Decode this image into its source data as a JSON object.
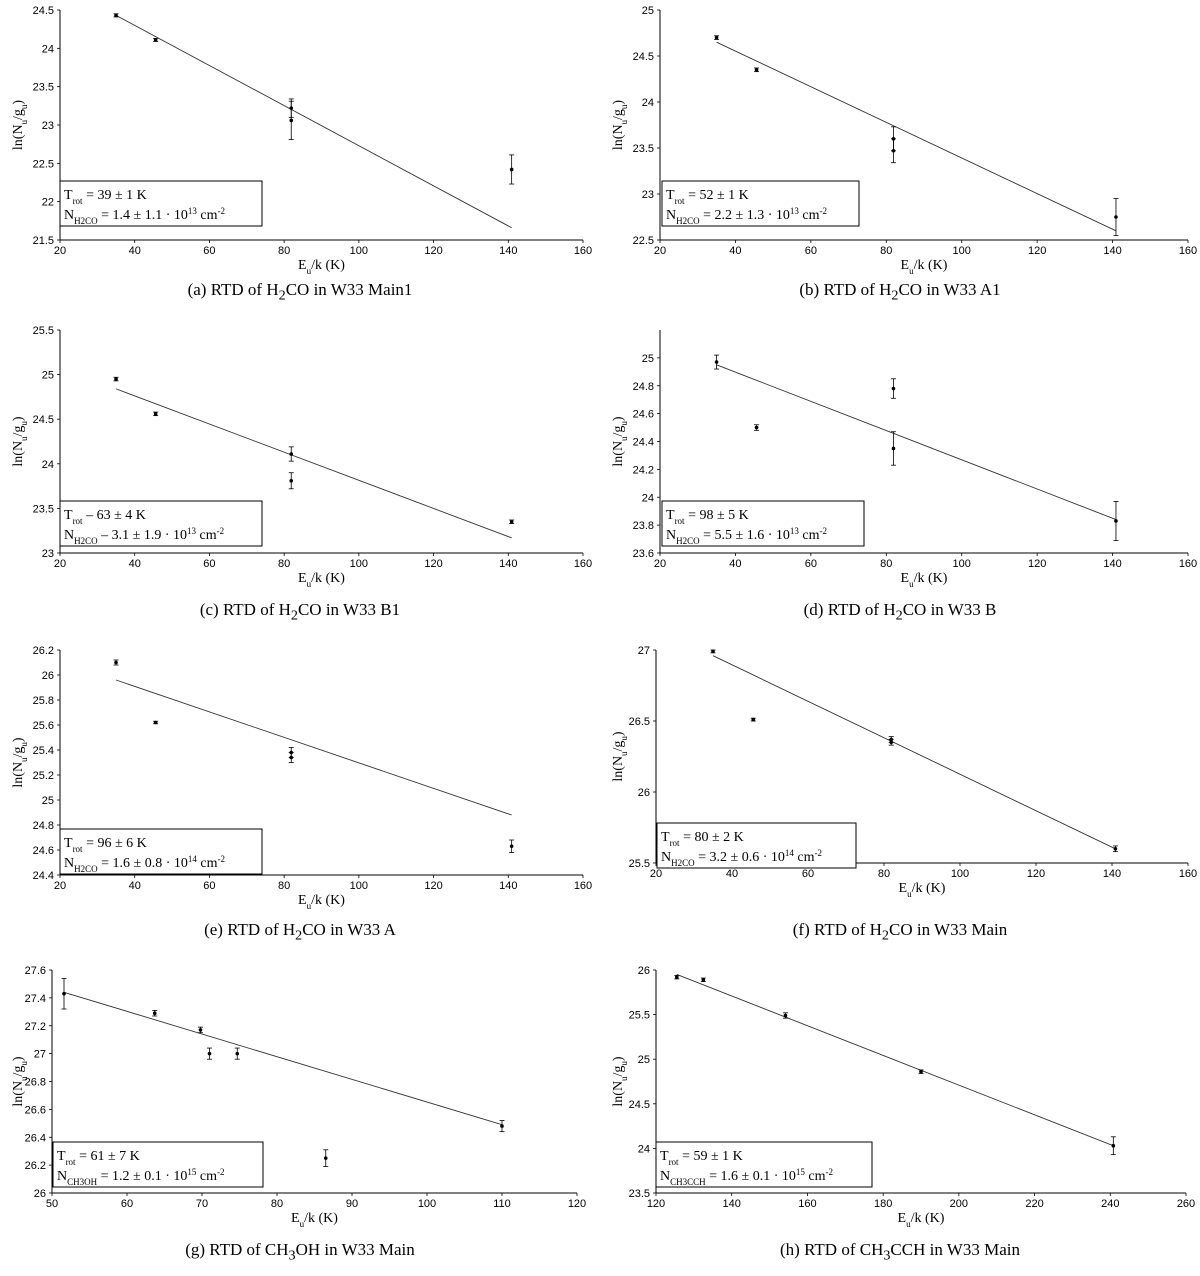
{
  "chart_data": [
    {
      "type": "scatter",
      "caption_prefix": "(a) RTD of ",
      "caption_species": "H<sub>2</sub>CO",
      "caption_suffix": " in W33 Main1",
      "ylabel": "ln(N<tspan baseline-shift='sub' font-size='9'>u</tspan>/g<tspan baseline-shift='sub' font-size='9'>u</tspan>)",
      "xlabel": "E<tspan baseline-shift='sub' font-size='9'>u</tspan>/k (K)",
      "xlim": [
        20,
        160
      ],
      "ylim": [
        21.5,
        24.5
      ],
      "xticks": [
        20,
        40,
        60,
        80,
        100,
        120,
        140,
        160
      ],
      "yticks": [
        21.5,
        22,
        22.5,
        23,
        23.5,
        24,
        24.5
      ],
      "points": [
        {
          "x": 35,
          "y": 24.43,
          "err": 0.02
        },
        {
          "x": 45.6,
          "y": 24.11,
          "err": 0.02
        },
        {
          "x": 81.9,
          "y": 23.22,
          "err": 0.12
        },
        {
          "x": 81.9,
          "y": 23.06,
          "err": 0.25
        },
        {
          "x": 140.9,
          "y": 22.42,
          "err": 0.19
        }
      ],
      "fit": [
        [
          35,
          24.43
        ],
        [
          140.9,
          21.66
        ]
      ],
      "trot": "T<tspan baseline-shift='sub' font-size='9'>rot</tspan> = 39 ± 1 K",
      "ncol": "N<tspan baseline-shift='sub' font-size='9'>H2CO</tspan> = 1.4 ± 1.1 · 10<tspan baseline-shift='super' font-size='9'>13</tspan> cm<tspan baseline-shift='super' font-size='9'>-2</tspan>"
    },
    {
      "type": "scatter",
      "caption_prefix": "(b) RTD of ",
      "caption_species": "H<sub>2</sub>CO",
      "caption_suffix": " in W33 A1",
      "ylabel": "ln(N<tspan baseline-shift='sub' font-size='9'>u</tspan>/g<tspan baseline-shift='sub' font-size='9'>u</tspan>)",
      "xlabel": "E<tspan baseline-shift='sub' font-size='9'>u</tspan>/k (K)",
      "xlim": [
        20,
        160
      ],
      "ylim": [
        22.5,
        25
      ],
      "xticks": [
        20,
        40,
        60,
        80,
        100,
        120,
        140,
        160
      ],
      "yticks": [
        22.5,
        23,
        23.5,
        24,
        24.5,
        25
      ],
      "points": [
        {
          "x": 35,
          "y": 24.7,
          "err": 0.02
        },
        {
          "x": 45.6,
          "y": 24.35,
          "err": 0.02
        },
        {
          "x": 81.9,
          "y": 23.6,
          "err": 0.13
        },
        {
          "x": 81.9,
          "y": 23.47,
          "err": 0.13
        },
        {
          "x": 140.9,
          "y": 22.75,
          "err": 0.2
        }
      ],
      "fit": [
        [
          35,
          24.65
        ],
        [
          140.9,
          22.6
        ]
      ],
      "trot": "T<tspan baseline-shift='sub' font-size='9'>rot</tspan> = 52 ± 1 K",
      "ncol": "N<tspan baseline-shift='sub' font-size='9'>H2CO</tspan> = 2.2 ± 1.3 · 10<tspan baseline-shift='super' font-size='9'>13</tspan> cm<tspan baseline-shift='super' font-size='9'>-2</tspan>"
    },
    {
      "type": "scatter",
      "caption_prefix": "(c) RTD of ",
      "caption_species": "H<sub>2</sub>CO",
      "caption_suffix": " in W33 B1",
      "ylabel": "ln(N<tspan baseline-shift='sub' font-size='9'>u</tspan>/g<tspan baseline-shift='sub' font-size='9'>u</tspan>)",
      "xlabel": "E<tspan baseline-shift='sub' font-size='9'>u</tspan>/k (K)",
      "xlim": [
        20,
        160
      ],
      "ylim": [
        23,
        25.5
      ],
      "xticks": [
        20,
        40,
        60,
        80,
        100,
        120,
        140,
        160
      ],
      "yticks": [
        23,
        23.5,
        24,
        24.5,
        25,
        25.5
      ],
      "points": [
        {
          "x": 35,
          "y": 24.95,
          "err": 0.02
        },
        {
          "x": 45.6,
          "y": 24.56,
          "err": 0.02
        },
        {
          "x": 81.9,
          "y": 24.11,
          "err": 0.08
        },
        {
          "x": 81.9,
          "y": 23.81,
          "err": 0.09
        },
        {
          "x": 140.9,
          "y": 23.35,
          "err": 0.02
        }
      ],
      "fit": [
        [
          35,
          24.84
        ],
        [
          140.9,
          23.17
        ]
      ],
      "trot": "T<tspan baseline-shift='sub' font-size='9'>rot</tspan> – 63 ± 4 K",
      "ncol": "N<tspan baseline-shift='sub' font-size='9'>H2CO</tspan> – 3.1 ± 1.9 · 10<tspan baseline-shift='super' font-size='9'>13</tspan> cm<tspan baseline-shift='super' font-size='9'>-2</tspan>"
    },
    {
      "type": "scatter",
      "caption_prefix": "(d) RTD of ",
      "caption_species": "H<sub>2</sub>CO",
      "caption_suffix": " in W33 B",
      "ylabel": "ln(N<tspan baseline-shift='sub' font-size='9'>u</tspan>/g<tspan baseline-shift='sub' font-size='9'>u</tspan>)",
      "xlabel": "E<tspan baseline-shift='sub' font-size='9'>u</tspan>/k (K)",
      "xlim": [
        20,
        160
      ],
      "ylim": [
        23.6,
        25.2
      ],
      "xticks": [
        20,
        40,
        60,
        80,
        100,
        120,
        140,
        160
      ],
      "yticks": [
        23.6,
        23.8,
        24,
        24.2,
        24.4,
        24.6,
        24.8,
        25
      ],
      "ytickLabels": [
        "23.6",
        "23.8",
        "24",
        "24.2",
        "24.4",
        "24.6",
        "24.8",
        "25"
      ],
      "points": [
        {
          "x": 35,
          "y": 24.97,
          "err": 0.05
        },
        {
          "x": 45.6,
          "y": 24.5,
          "err": 0.02
        },
        {
          "x": 81.9,
          "y": 24.78,
          "err": 0.07
        },
        {
          "x": 81.9,
          "y": 24.35,
          "err": 0.12
        },
        {
          "x": 140.9,
          "y": 23.83,
          "err": 0.14
        }
      ],
      "fit": [
        [
          35,
          24.95
        ],
        [
          140.9,
          23.84
        ]
      ],
      "trot": "T<tspan baseline-shift='sub' font-size='9'>rot</tspan> = 98 ± 5 K",
      "ncol": "N<tspan baseline-shift='sub' font-size='9'>H2CO</tspan> = 5.5 ± 1.6 · 10<tspan baseline-shift='super' font-size='9'>13</tspan> cm<tspan baseline-shift='super' font-size='9'>-2</tspan>"
    },
    {
      "type": "scatter",
      "caption_prefix": "(e) RTD of ",
      "caption_species": "H<sub>2</sub>CO",
      "caption_suffix": " in W33 A",
      "ylabel": "ln(N<tspan baseline-shift='sub' font-size='9'>u</tspan>/g<tspan baseline-shift='sub' font-size='9'>u</tspan>)",
      "xlabel": "E<tspan baseline-shift='sub' font-size='9'>u</tspan>/k (K)",
      "xlim": [
        20,
        160
      ],
      "ylim": [
        24.4,
        26.2
      ],
      "xticks": [
        20,
        40,
        60,
        80,
        100,
        120,
        140,
        160
      ],
      "yticks": [
        24.4,
        24.6,
        24.8,
        25,
        25.2,
        25.4,
        25.6,
        25.8,
        26,
        26.2
      ],
      "points": [
        {
          "x": 35,
          "y": 26.1,
          "err": 0.02
        },
        {
          "x": 45.6,
          "y": 25.62,
          "err": 0.01
        },
        {
          "x": 81.9,
          "y": 25.38,
          "err": 0.04
        },
        {
          "x": 81.9,
          "y": 25.34,
          "err": 0.04
        },
        {
          "x": 140.9,
          "y": 24.63,
          "err": 0.05
        }
      ],
      "fit": [
        [
          35,
          25.96
        ],
        [
          140.9,
          24.88
        ]
      ],
      "trot": "T<tspan baseline-shift='sub' font-size='9'>rot</tspan> = 96 ± 6 K",
      "ncol": "N<tspan baseline-shift='sub' font-size='9'>H2CO</tspan> = 1.6 ± 0.8 · 10<tspan baseline-shift='super' font-size='9'>14</tspan> cm<tspan baseline-shift='super' font-size='9'>-2</tspan>"
    },
    {
      "type": "scatter",
      "caption_prefix": "(f) RTD of ",
      "caption_species": "H<sub>2</sub>CO",
      "caption_suffix": " in W33 Main",
      "ylabel": "ln(N<tspan baseline-shift='sub' font-size='9'>u</tspan>/g<tspan baseline-shift='sub' font-size='9'>u</tspan>)",
      "xlabel": "E<tspan baseline-shift='sub' font-size='9'>u</tspan>/k (K)",
      "xlim": [
        20,
        160
      ],
      "ylim": [
        25.5,
        27
      ],
      "xticks": [
        20,
        40,
        60,
        80,
        100,
        120,
        140,
        160
      ],
      "yticks": [
        25.5,
        26,
        26.5,
        27
      ],
      "points": [
        {
          "x": 35,
          "y": 26.99,
          "err": 0.01
        },
        {
          "x": 45.6,
          "y": 26.51,
          "err": 0.01
        },
        {
          "x": 81.9,
          "y": 26.37,
          "err": 0.02
        },
        {
          "x": 81.9,
          "y": 26.35,
          "err": 0.02
        },
        {
          "x": 140.9,
          "y": 25.6,
          "err": 0.02
        }
      ],
      "fit": [
        [
          35,
          26.96
        ],
        [
          140.9,
          25.6
        ]
      ],
      "trot": "T<tspan baseline-shift='sub' font-size='9'>rot</tspan> = 80 ± 2 K",
      "ncol": "N<tspan baseline-shift='sub' font-size='9'>H2CO</tspan> = 3.2 ± 0.6 · 10<tspan baseline-shift='super' font-size='9'>14</tspan> cm<tspan baseline-shift='super' font-size='9'>-2</tspan>"
    },
    {
      "type": "scatter",
      "caption_prefix": "(g) RTD of ",
      "caption_species": "CH<sub>3</sub>OH",
      "caption_suffix": " in W33 Main",
      "ylabel": "ln(N<tspan baseline-shift='sub' font-size='9'>u</tspan>/g<tspan baseline-shift='sub' font-size='9'>u</tspan>)",
      "xlabel": "E<tspan baseline-shift='sub' font-size='9'>u</tspan>/k (K)",
      "xlim": [
        50,
        120
      ],
      "ylim": [
        26,
        27.6
      ],
      "xticks": [
        50,
        60,
        70,
        80,
        90,
        100,
        110,
        120
      ],
      "yticks": [
        26,
        26.2,
        26.4,
        26.6,
        26.8,
        27,
        27.2,
        27.4,
        27.6
      ],
      "points": [
        {
          "x": 51.6,
          "y": 27.43,
          "err": 0.11
        },
        {
          "x": 63.7,
          "y": 27.29,
          "err": 0.02
        },
        {
          "x": 69.8,
          "y": 27.17,
          "err": 0.02
        },
        {
          "x": 71.0,
          "y": 27.0,
          "err": 0.04
        },
        {
          "x": 74.7,
          "y": 27.0,
          "err": 0.04
        },
        {
          "x": 86.5,
          "y": 26.25,
          "err": 0.06
        },
        {
          "x": 110.0,
          "y": 26.48,
          "err": 0.04
        }
      ],
      "fit": [
        [
          51.6,
          27.44
        ],
        [
          110.0,
          26.49
        ]
      ],
      "trot": "T<tspan baseline-shift='sub' font-size='9'>rot</tspan> = 61 ± 7 K",
      "ncol": "N<tspan baseline-shift='sub' font-size='9'>CH3OH</tspan> = 1.2 ± 0.1 · 10<tspan baseline-shift='super' font-size='9'>15</tspan> cm<tspan baseline-shift='super' font-size='9'>-2</tspan>"
    },
    {
      "type": "scatter",
      "caption_prefix": "(h) RTD of ",
      "caption_species": "CH<sub>3</sub>CCH",
      "caption_suffix": " in W33 Main",
      "ylabel": "ln(N<tspan baseline-shift='sub' font-size='9'>u</tspan>/g<tspan baseline-shift='sub' font-size='9'>u</tspan>)",
      "xlabel": "E<tspan baseline-shift='sub' font-size='9'>u</tspan>/k (K)",
      "xlim": [
        120,
        260
      ],
      "ylim": [
        23.5,
        26
      ],
      "xticks": [
        120,
        140,
        160,
        180,
        200,
        220,
        240,
        260
      ],
      "yticks": [
        23.5,
        24,
        24.5,
        25,
        25.5,
        26
      ],
      "points": [
        {
          "x": 125.5,
          "y": 25.92,
          "err": 0.02
        },
        {
          "x": 132.5,
          "y": 25.89,
          "err": 0.02
        },
        {
          "x": 154.2,
          "y": 25.49,
          "err": 0.03
        },
        {
          "x": 190.0,
          "y": 24.86,
          "err": 0.02
        },
        {
          "x": 240.8,
          "y": 24.03,
          "err": 0.1
        }
      ],
      "fit": [
        [
          125.5,
          25.95
        ],
        [
          240.8,
          24.03
        ]
      ],
      "trot": "T<tspan baseline-shift='sub' font-size='9'>rot</tspan> = 59 ± 1 K",
      "ncol": "N<tspan baseline-shift='sub' font-size='9'>CH3CCH</tspan> = 1.6 ± 0.1 · 10<tspan baseline-shift='super' font-size='9'>15</tspan> cm<tspan baseline-shift='super' font-size='9'>-2</tspan>"
    }
  ]
}
